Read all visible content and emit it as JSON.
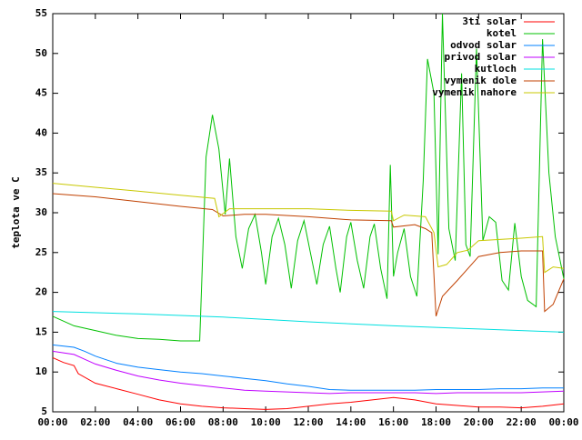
{
  "chart_data": {
    "type": "line",
    "ylabel": "teplota ve C",
    "legend": "top-right",
    "xlim": [
      0,
      24
    ],
    "xticks": [
      {
        "value": 0,
        "label": "00:00"
      },
      {
        "value": 2,
        "label": "02:00"
      },
      {
        "value": 4,
        "label": "04:00"
      },
      {
        "value": 6,
        "label": "06:00"
      },
      {
        "value": 8,
        "label": "08:00"
      },
      {
        "value": 10,
        "label": "10:00"
      },
      {
        "value": 12,
        "label": "12:00"
      },
      {
        "value": 14,
        "label": "14:00"
      },
      {
        "value": 16,
        "label": "16:00"
      },
      {
        "value": 18,
        "label": "18:00"
      },
      {
        "value": 20,
        "label": "20:00"
      },
      {
        "value": 22,
        "label": "22:00"
      },
      {
        "value": 24,
        "label": "00:00"
      }
    ],
    "ylim": [
      5,
      55
    ],
    "yticks": [
      5,
      10,
      15,
      20,
      25,
      30,
      35,
      40,
      45,
      50,
      55
    ],
    "series": [
      {
        "name": "3ti solar",
        "color": "#ff0000",
        "x": [
          0,
          0.5,
          1,
          1.2,
          2,
          3,
          4,
          5,
          6,
          7,
          8,
          9,
          10,
          11,
          12,
          13,
          14,
          15,
          16,
          17,
          18,
          19,
          20,
          21,
          22,
          23,
          24
        ],
        "values": [
          11.8,
          11.2,
          10.8,
          9.8,
          8.6,
          7.9,
          7.2,
          6.5,
          6.0,
          5.7,
          5.5,
          5.4,
          5.3,
          5.4,
          5.7,
          6.0,
          6.2,
          6.5,
          6.8,
          6.5,
          6.0,
          5.8,
          5.6,
          5.6,
          5.5,
          5.7,
          6.0
        ]
      },
      {
        "name": "kotel",
        "color": "#00c000",
        "x": [
          0,
          1,
          2,
          3,
          4,
          5,
          6,
          6.9,
          7.2,
          7.5,
          7.8,
          8.1,
          8.3,
          8.6,
          8.9,
          9.2,
          9.5,
          9.8,
          10,
          10.3,
          10.6,
          10.9,
          11.2,
          11.5,
          11.8,
          12.1,
          12.4,
          12.7,
          13,
          13.3,
          13.5,
          13.8,
          14,
          14.3,
          14.6,
          14.9,
          15.1,
          15.4,
          15.7,
          15.85,
          16,
          16.2,
          16.5,
          16.8,
          17.1,
          17.4,
          17.6,
          17.9,
          18.1,
          18.3,
          18.6,
          18.9,
          19.2,
          19.4,
          19.6,
          19.9,
          20.2,
          20.5,
          20.8,
          21.1,
          21.4,
          21.7,
          22,
          22.3,
          22.7,
          23,
          23.3,
          23.6,
          24
        ],
        "values": [
          17,
          15.8,
          15.2,
          14.6,
          14.2,
          14.1,
          13.9,
          13.9,
          37,
          42.3,
          38,
          29.8,
          36.8,
          27,
          23,
          28,
          29.8,
          25,
          21,
          27,
          29.3,
          26,
          20.5,
          26.5,
          29,
          25,
          21,
          26,
          28.3,
          23,
          20,
          27,
          28.8,
          24,
          20.5,
          27,
          28.6,
          23,
          19.2,
          36,
          22,
          25,
          28,
          22,
          19.5,
          34,
          49.3,
          45,
          24.8,
          55,
          28,
          24,
          47.5,
          26,
          24.5,
          50.6,
          26.5,
          29.5,
          28.8,
          21.5,
          20.3,
          28.7,
          22,
          19,
          18.2,
          51.8,
          35,
          27,
          21.7
        ]
      },
      {
        "name": "odvod solar",
        "color": "#0080ff",
        "x": [
          0,
          1,
          1.5,
          2,
          3,
          4,
          5,
          6,
          7,
          8,
          9,
          10,
          11,
          12,
          13,
          14,
          15,
          16,
          17,
          18,
          19,
          20,
          21,
          22,
          23,
          24
        ],
        "values": [
          13.4,
          13.1,
          12.6,
          12.0,
          11.1,
          10.6,
          10.3,
          10.0,
          9.8,
          9.5,
          9.2,
          8.9,
          8.5,
          8.2,
          7.8,
          7.7,
          7.7,
          7.7,
          7.7,
          7.8,
          7.8,
          7.8,
          7.9,
          7.9,
          8.0,
          8.0
        ]
      },
      {
        "name": "privod solar",
        "color": "#c000ff",
        "x": [
          0,
          1,
          1.5,
          2,
          3,
          4,
          5,
          6,
          7,
          8,
          9,
          10,
          11,
          12,
          13,
          14,
          15,
          16,
          17,
          18,
          19,
          20,
          21,
          22,
          23,
          24
        ],
        "values": [
          12.6,
          12.2,
          11.6,
          11.0,
          10.2,
          9.5,
          9.0,
          8.6,
          8.3,
          8.0,
          7.7,
          7.6,
          7.5,
          7.4,
          7.3,
          7.4,
          7.4,
          7.4,
          7.4,
          7.3,
          7.4,
          7.4,
          7.4,
          7.4,
          7.5,
          7.6
        ]
      },
      {
        "name": "kutloch",
        "color": "#00e0e0",
        "x": [
          0,
          4,
          8,
          12,
          16,
          20,
          24
        ],
        "values": [
          17.6,
          17.3,
          16.9,
          16.3,
          15.8,
          15.4,
          15.0
        ]
      },
      {
        "name": "vymenik dole",
        "color": "#c04000",
        "x": [
          0,
          2,
          4,
          6,
          7.5,
          8,
          9,
          10,
          12,
          14,
          15.9,
          16,
          17,
          17.5,
          17.8,
          18,
          18.3,
          19,
          20,
          21,
          22,
          23,
          23.1,
          23.5,
          24
        ],
        "values": [
          32.4,
          32.0,
          31.4,
          30.8,
          30.4,
          29.6,
          29.8,
          29.8,
          29.5,
          29.1,
          29.0,
          28.2,
          28.5,
          28.0,
          27.5,
          17.0,
          19.5,
          21.5,
          24.5,
          25.0,
          25.2,
          25.2,
          17.6,
          18.5,
          21.7
        ]
      },
      {
        "name": "vymenik nahore",
        "color": "#c8c800",
        "x": [
          0,
          2,
          4,
          6,
          7.6,
          7.8,
          8.3,
          9,
          12,
          14,
          15.9,
          16,
          16.5,
          17.5,
          17.9,
          18.1,
          18.5,
          19,
          19.5,
          20,
          22,
          23,
          23.1,
          23.5,
          24
        ],
        "values": [
          33.7,
          33.2,
          32.7,
          32.2,
          31.8,
          29.5,
          30.5,
          30.5,
          30.5,
          30.3,
          30.2,
          29.0,
          29.7,
          29.5,
          27.5,
          23.2,
          23.5,
          25.0,
          25.3,
          26.5,
          26.8,
          27.0,
          22.5,
          23.2,
          23.0
        ]
      }
    ]
  }
}
